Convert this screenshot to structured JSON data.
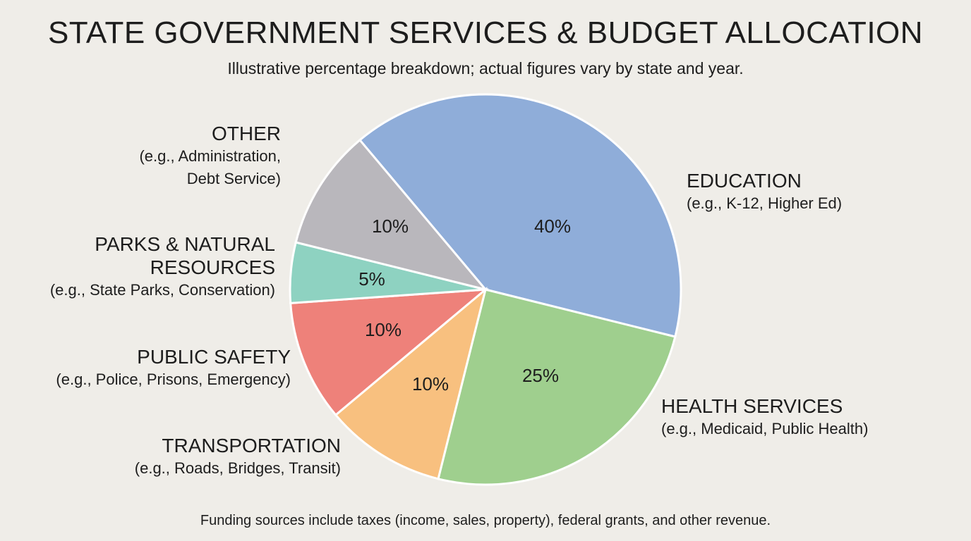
{
  "chart_data": {
    "type": "pie",
    "title": "STATE GOVERNMENT SERVICES & BUDGET ALLOCATION",
    "subtitle": "Illustrative percentage breakdown; actual figures vary by state and year.",
    "categories": [
      "EDUCATION",
      "HEALTH SERVICES",
      "TRANSPORTATION",
      "PUBLIC SAFETY",
      "PARKS & NATURAL RESOURCES",
      "OTHER"
    ],
    "descriptions": [
      "(e.g., K-12, Higher Ed)",
      "(e.g., Medicaid, Public Health)",
      "(e.g., Roads, Bridges, Transit)",
      "(e.g., Police, Prisons, Emergency)",
      "(e.g., State Parks, Conservation)",
      "(e.g., Administration, Debt Service)"
    ],
    "values": [
      40,
      25,
      10,
      10,
      5,
      10
    ],
    "value_labels": [
      "40%",
      "25%",
      "10%",
      "10%",
      "5%",
      "10%"
    ],
    "colors": [
      "#8fadd9",
      "#9fcf8e",
      "#f8c07f",
      "#ee817a",
      "#8ed2c1",
      "#b9b7bc"
    ],
    "footnote": "Funding sources include taxes (income, sales, property), federal grants, and other revenue."
  }
}
